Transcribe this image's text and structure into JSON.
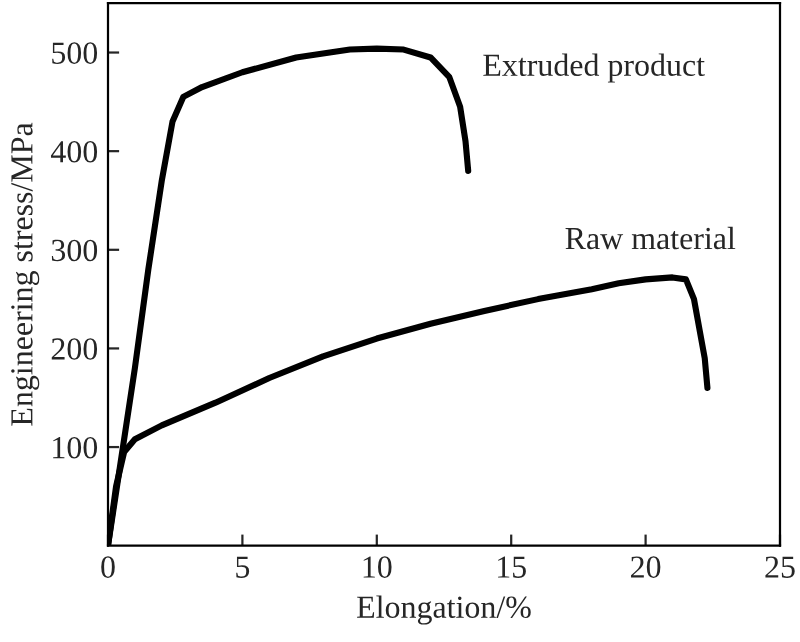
{
  "chart_data": {
    "type": "line",
    "xlabel": "Elongation/%",
    "ylabel": "Engineering stress/MPa",
    "xlim": [
      0,
      25
    ],
    "ylim": [
      0,
      550
    ],
    "xticks": [
      0,
      5,
      10,
      15,
      20,
      25
    ],
    "yticks": [
      100,
      200,
      300,
      400,
      500
    ],
    "grid": false,
    "legend": false,
    "marker": "none",
    "line_style": "solid",
    "series": [
      {
        "name": "Extruded product",
        "color": "#000000",
        "x": [
          0,
          0.5,
          1,
          1.5,
          2,
          2.4,
          2.8,
          3.5,
          5,
          7,
          9,
          10,
          11,
          12,
          12.7,
          13.1,
          13.3,
          13.4
        ],
        "values": [
          0,
          90,
          180,
          280,
          370,
          430,
          455,
          465,
          480,
          495,
          503,
          504,
          503,
          495,
          475,
          445,
          410,
          380
        ]
      },
      {
        "name": "Raw material",
        "color": "#000000",
        "x": [
          0,
          0.3,
          0.6,
          1,
          2,
          4,
          6,
          8,
          10,
          12,
          14,
          16,
          18,
          19,
          20,
          21,
          21.5,
          21.8,
          22,
          22.2,
          22.3
        ],
        "values": [
          0,
          60,
          95,
          108,
          122,
          145,
          170,
          192,
          210,
          225,
          238,
          250,
          260,
          266,
          270,
          272,
          270,
          250,
          220,
          190,
          160
        ]
      }
    ]
  }
}
